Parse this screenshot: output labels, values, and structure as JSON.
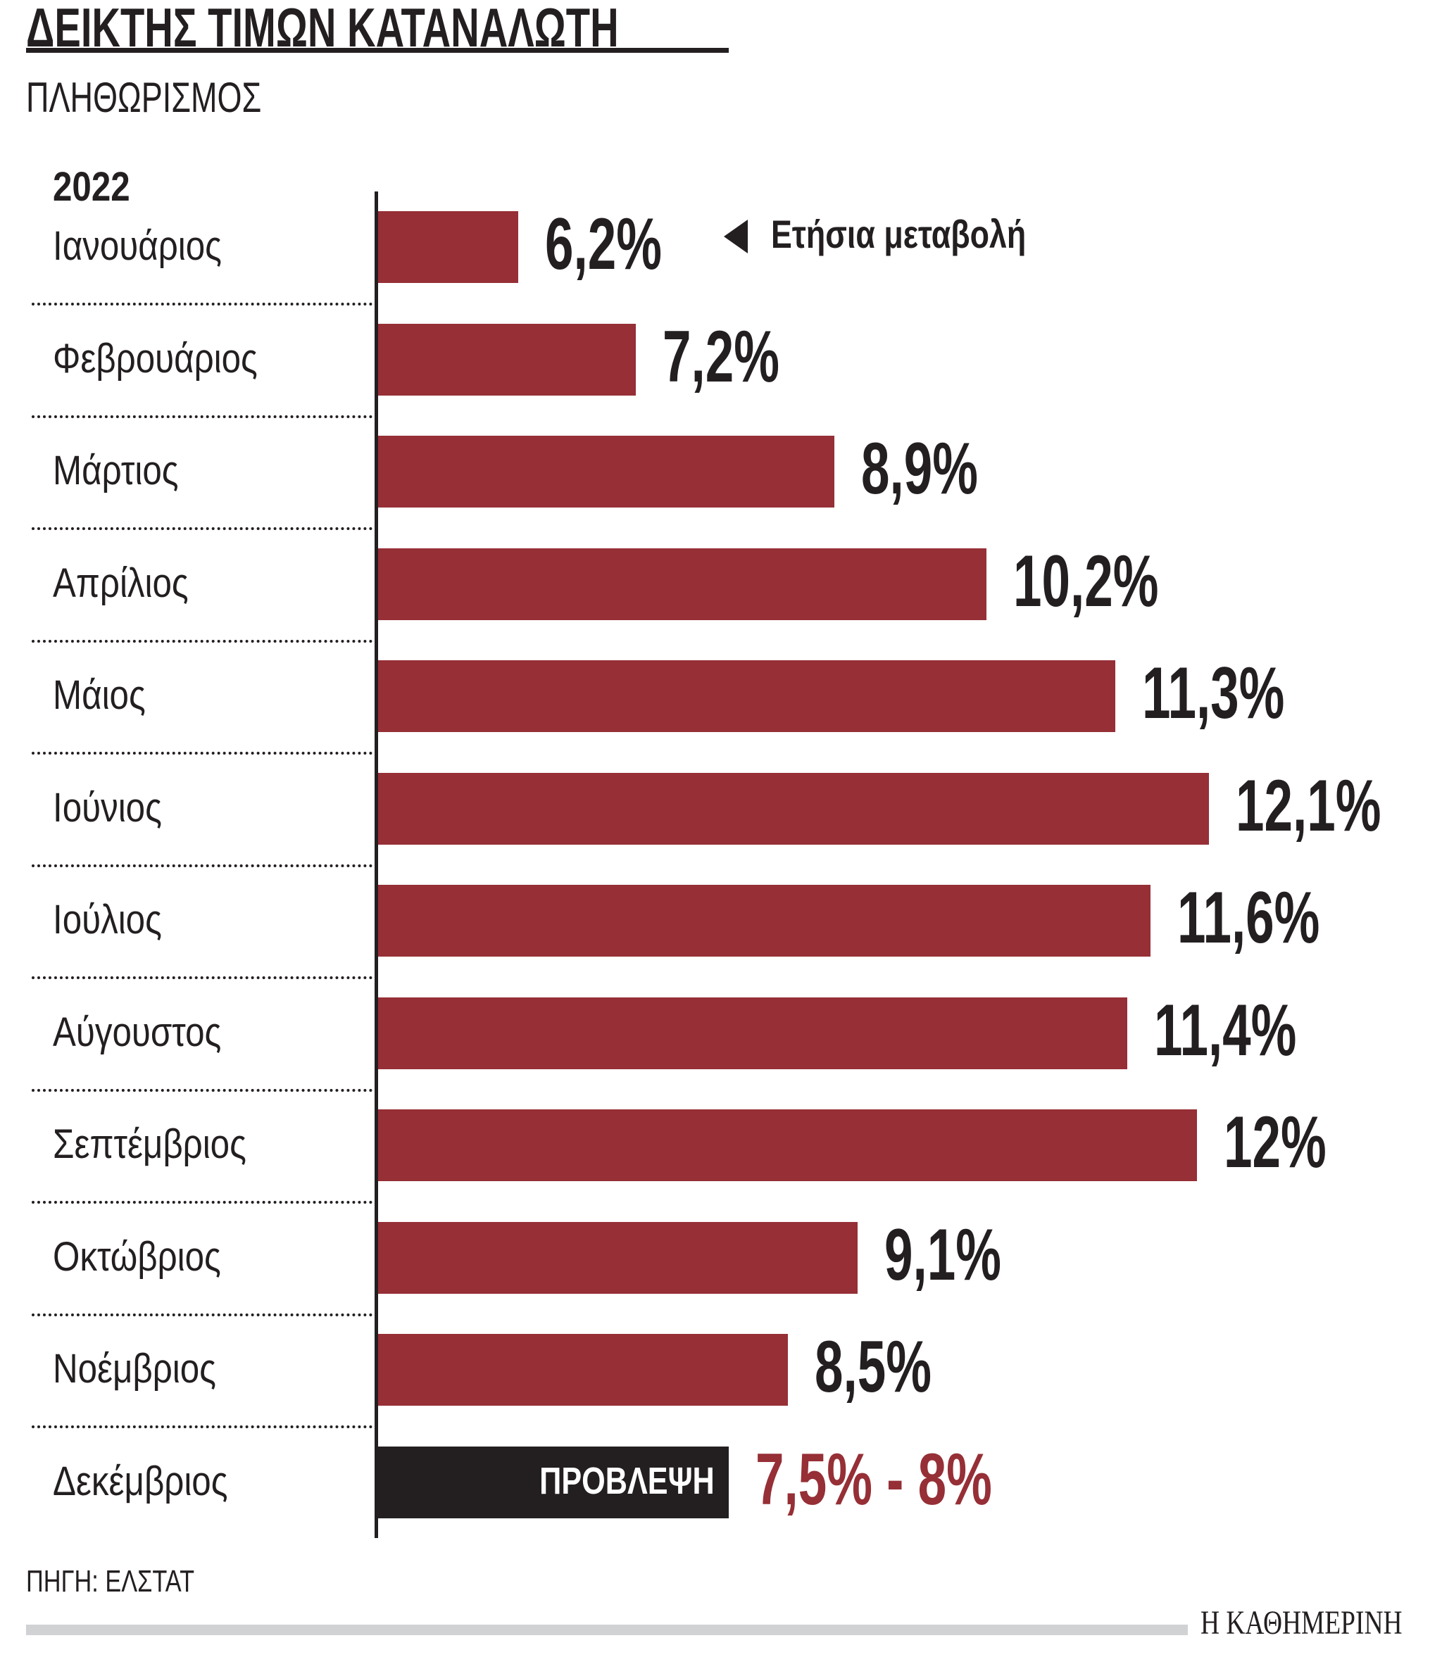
{
  "header": {
    "title": "ΔΕΙΚΤΗΣ ΤΙΜΩΝ ΚΑΤΑΝΑΛΩΤΗ",
    "subtitle": "ΠΛΗΘΩΡΙΣΜΟΣ"
  },
  "chart_data": {
    "type": "bar",
    "orientation": "horizontal",
    "title": "ΔΕΙΚΤΗΣ ΤΙΜΩΝ ΚΑΤΑΝΑΛΩΤΗ",
    "subtitle": "ΠΛΗΘΩΡΙΣΜΟΣ",
    "year_label": "2022",
    "annotation": "Ετήσια μεταβολή",
    "unit": "%",
    "xlim": [
      5,
      12.1
    ],
    "categories": [
      "Ιανουάριος",
      "Φεβρουάριος",
      "Μάρτιος",
      "Απρίλιος",
      "Μάιος",
      "Ιούνιος",
      "Ιούλιος",
      "Αύγουστος",
      "Σεπτέμβριος",
      "Οκτώβριος",
      "Νοέμβριος",
      "Δεκέμβριος"
    ],
    "values": [
      6.2,
      7.2,
      8.9,
      10.2,
      11.3,
      12.1,
      11.6,
      11.4,
      12,
      9.1,
      8.5,
      null
    ],
    "value_labels": [
      "6,2%",
      "7,2%",
      "8,9%",
      "10,2%",
      "11,3%",
      "12,1%",
      "11,6%",
      "11,4%",
      "12%",
      "9,1%",
      "8,5%",
      "7,5% - 8%"
    ],
    "forecast": {
      "label": "ΠΡΟΒΛΕΨΗ",
      "range": [
        7.5,
        8
      ],
      "value_label": "7,5% - 8%"
    },
    "colors": {
      "bar": "#962f36",
      "forecast_bar": "#231f20",
      "forecast_text": "#962f36"
    }
  },
  "footer": {
    "source": "ΠΗΓΗ: ΕΛΣΤΑΤ",
    "logo": "Η ΚΑΘΗΜΕΡΙΝΗ"
  }
}
